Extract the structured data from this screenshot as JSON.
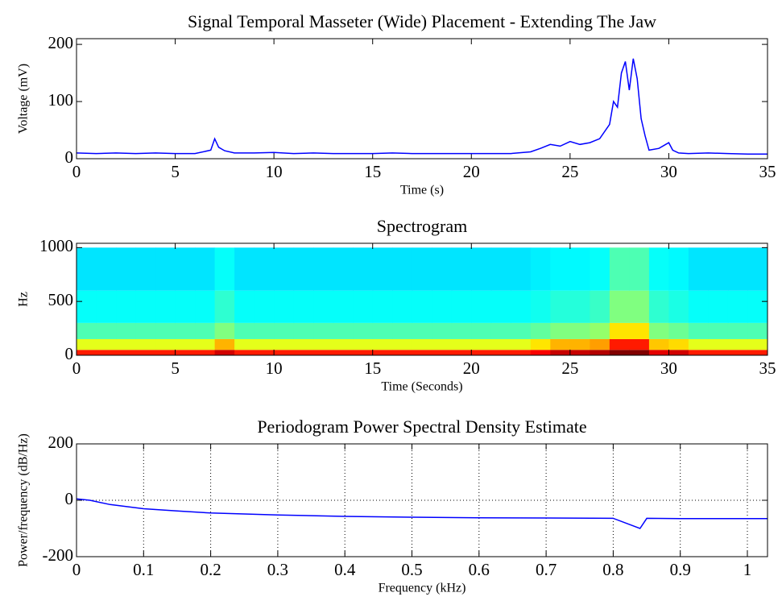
{
  "chart_data": [
    {
      "type": "line",
      "title": "Signal Temporal Masseter (Wide) Placement - Extending The Jaw",
      "xlabel": "Time (s)",
      "ylabel": "Voltage (mV)",
      "x": [
        0,
        1,
        2,
        3,
        4,
        5,
        6,
        6.8,
        7,
        7.2,
        7.5,
        8,
        9,
        10,
        11,
        12,
        13,
        14,
        15,
        16,
        17,
        18,
        19,
        20,
        21,
        22,
        23,
        23.5,
        24,
        24.5,
        25,
        25.5,
        26,
        26.5,
        27,
        27.2,
        27.4,
        27.6,
        27.8,
        28,
        28.2,
        28.4,
        28.6,
        28.8,
        29,
        29.5,
        30,
        30.2,
        30.5,
        31,
        32,
        33,
        34,
        35
      ],
      "values": [
        10,
        9,
        10,
        9,
        10,
        9,
        9,
        15,
        35,
        20,
        14,
        10,
        10,
        11,
        9,
        10,
        9,
        9,
        9,
        10,
        9,
        9,
        9,
        9,
        9,
        9,
        12,
        18,
        25,
        22,
        30,
        25,
        28,
        35,
        60,
        100,
        90,
        150,
        170,
        120,
        175,
        140,
        70,
        40,
        15,
        18,
        28,
        15,
        10,
        9,
        10,
        9,
        8,
        8
      ],
      "color": "#0000ff",
      "xlim": [
        0,
        35
      ],
      "xticks": [
        0,
        5,
        10,
        15,
        20,
        25,
        30,
        35
      ],
      "ylim": [
        0,
        210
      ],
      "yticks": [
        0,
        100,
        200
      ],
      "grid": false
    },
    {
      "type": "heatmap",
      "title": "Spectrogram",
      "xlabel": "Time (Seconds)",
      "ylabel": "Hz",
      "xbins": [
        0,
        1,
        2,
        3,
        4,
        5,
        6,
        7,
        8,
        9,
        10,
        11,
        12,
        13,
        14,
        15,
        16,
        17,
        18,
        19,
        20,
        21,
        22,
        23,
        24,
        25,
        26,
        27,
        28,
        29,
        30,
        31,
        32,
        33,
        34,
        35
      ],
      "ybins": [
        0,
        50,
        150,
        300,
        600,
        1000
      ],
      "z": [
        [
          0.85,
          0.85,
          0.85,
          0.85,
          0.85,
          0.85,
          0.85,
          0.92,
          0.85,
          0.85,
          0.85,
          0.85,
          0.85,
          0.85,
          0.85,
          0.85,
          0.85,
          0.85,
          0.85,
          0.85,
          0.85,
          0.85,
          0.85,
          0.88,
          0.93,
          0.93,
          0.95,
          1,
          1,
          0.9,
          0.92,
          0.85,
          0.85,
          0.85,
          0.85
        ],
        [
          0.6,
          0.6,
          0.6,
          0.6,
          0.6,
          0.6,
          0.6,
          0.7,
          0.6,
          0.6,
          0.6,
          0.6,
          0.6,
          0.6,
          0.6,
          0.6,
          0.6,
          0.6,
          0.6,
          0.6,
          0.6,
          0.6,
          0.6,
          0.65,
          0.7,
          0.7,
          0.72,
          0.85,
          0.85,
          0.68,
          0.66,
          0.6,
          0.6,
          0.6,
          0.6
        ],
        [
          0.45,
          0.45,
          0.45,
          0.45,
          0.45,
          0.45,
          0.45,
          0.5,
          0.45,
          0.45,
          0.45,
          0.45,
          0.45,
          0.45,
          0.45,
          0.45,
          0.45,
          0.45,
          0.45,
          0.45,
          0.45,
          0.45,
          0.45,
          0.47,
          0.5,
          0.5,
          0.52,
          0.65,
          0.65,
          0.5,
          0.48,
          0.45,
          0.45,
          0.45,
          0.45
        ],
        [
          0.38,
          0.38,
          0.38,
          0.38,
          0.38,
          0.38,
          0.38,
          0.42,
          0.38,
          0.38,
          0.38,
          0.38,
          0.38,
          0.38,
          0.38,
          0.38,
          0.38,
          0.38,
          0.38,
          0.38,
          0.38,
          0.38,
          0.38,
          0.39,
          0.41,
          0.41,
          0.43,
          0.5,
          0.5,
          0.42,
          0.4,
          0.38,
          0.38,
          0.38,
          0.38
        ],
        [
          0.35,
          0.35,
          0.35,
          0.35,
          0.35,
          0.35,
          0.35,
          0.38,
          0.35,
          0.35,
          0.35,
          0.35,
          0.35,
          0.35,
          0.35,
          0.35,
          0.35,
          0.35,
          0.35,
          0.35,
          0.35,
          0.35,
          0.35,
          0.36,
          0.37,
          0.37,
          0.38,
          0.45,
          0.45,
          0.38,
          0.37,
          0.35,
          0.35,
          0.35,
          0.35
        ]
      ],
      "xlim": [
        0,
        35
      ],
      "xticks": [
        0,
        5,
        10,
        15,
        20,
        25,
        30,
        35
      ],
      "ylim": [
        0,
        1040
      ],
      "yticks": [
        0,
        500,
        1000
      ],
      "grid": false
    },
    {
      "type": "line",
      "title": "Periodogram Power Spectral Density Estimate",
      "xlabel": "Frequency (kHz)",
      "ylabel": "Power/frequency (dB/Hz)",
      "x": [
        0,
        0.02,
        0.05,
        0.1,
        0.15,
        0.2,
        0.3,
        0.4,
        0.5,
        0.6,
        0.7,
        0.8,
        0.84,
        0.85,
        0.9,
        1,
        1.03
      ],
      "values": [
        5,
        0,
        -15,
        -30,
        -38,
        -45,
        -52,
        -57,
        -60,
        -62,
        -63,
        -64,
        -100,
        -64,
        -65,
        -65,
        -65
      ],
      "color": "#0000ff",
      "xlim": [
        0,
        1.03
      ],
      "xticks": [
        0,
        0.1,
        0.2,
        0.3,
        0.4,
        0.5,
        0.6,
        0.7,
        0.8,
        0.9,
        1
      ],
      "ylim": [
        -200,
        200
      ],
      "yticks": [
        -200,
        0,
        200
      ],
      "grid": true
    }
  ]
}
